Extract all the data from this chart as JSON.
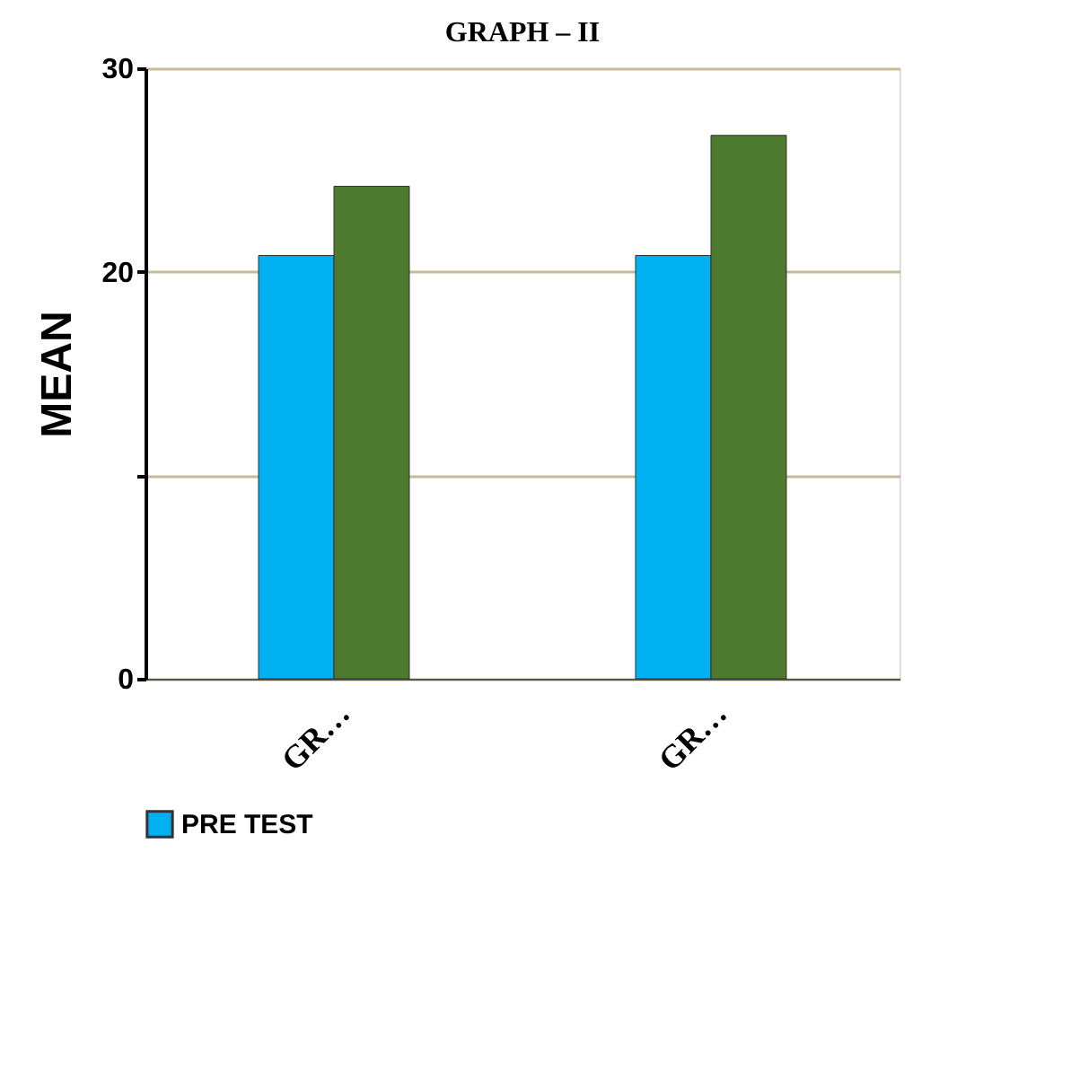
{
  "chart_data": {
    "type": "bar",
    "title": "GRAPH – II",
    "ylabel": "MEAN",
    "categories": [
      "GR…",
      "GR…"
    ],
    "series": [
      {
        "name": "PRE TEST",
        "color": "#00b0f0",
        "values": [
          20.8,
          20.8
        ]
      },
      {
        "color": "#4e7a30",
        "values": [
          24.2,
          26.7
        ]
      }
    ],
    "ylim": [
      0,
      30
    ],
    "yticks": [
      0,
      {
        "value": 10,
        "label": null
      },
      20,
      30
    ],
    "grid": "y",
    "legend": "bottom"
  }
}
